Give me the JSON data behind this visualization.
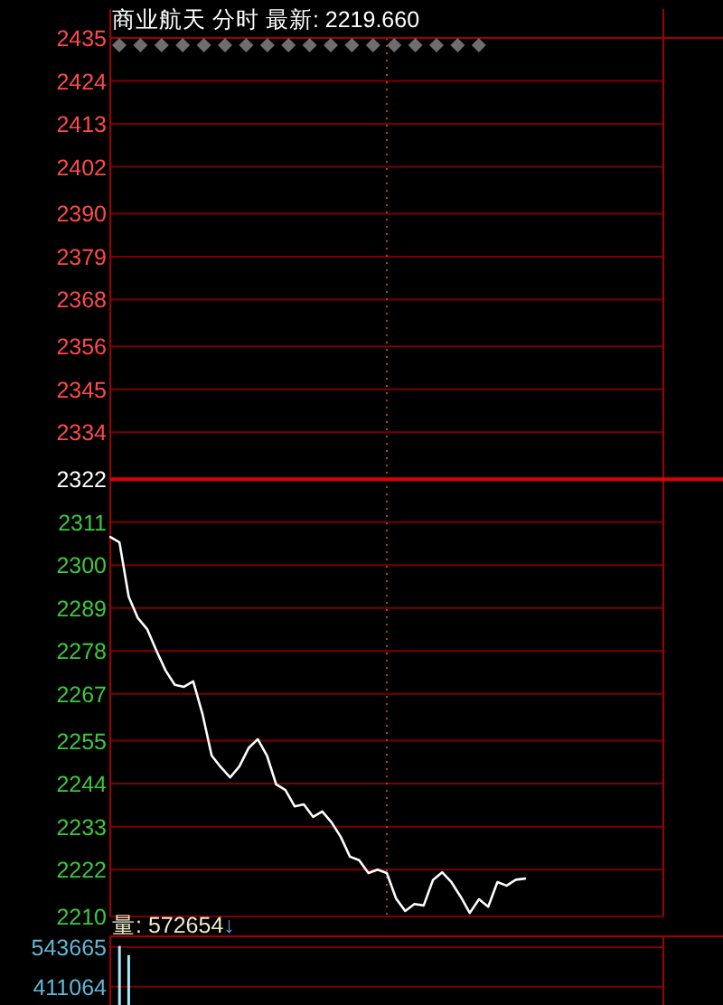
{
  "chart_data": [
    {
      "type": "line",
      "title": "商业航天 分时 最新: 2219.660",
      "categories": [
        null,
        null,
        null,
        null,
        null,
        null,
        null,
        null,
        null,
        null,
        null,
        null,
        null,
        null,
        null,
        null,
        null,
        null,
        null,
        null,
        null,
        null,
        null,
        null,
        null,
        null,
        null,
        null,
        null,
        null,
        null,
        null,
        null,
        null,
        null,
        null,
        null,
        null,
        null,
        null,
        null,
        null,
        null,
        null,
        null,
        null,
        null,
        null,
        null,
        null,
        null,
        null,
        null,
        null,
        null,
        null,
        null,
        null,
        null,
        null,
        null
      ],
      "series": [
        {
          "color": "#ffffff",
          "values": [
            2307.2,
            2305.8,
            2291.9,
            2286.4,
            2283.6,
            2278.1,
            2273.0,
            2269.3,
            2268.8,
            2270.2,
            2261.9,
            2251.2,
            2248.2,
            2245.6,
            2248.4,
            2253.1,
            2255.4,
            2251.2,
            2243.8,
            2242.4,
            2238.2,
            2238.7,
            2235.5,
            2236.9,
            2234.1,
            2230.4,
            2225.3,
            2224.4,
            2221.1,
            2222.0,
            2221.1,
            2214.6,
            2211.4,
            2213.2,
            2212.8,
            2219.3,
            2221.3,
            2218.8,
            2215.1,
            2210.9,
            2214.4,
            2212.5,
            2218.8,
            2217.9,
            2219.4,
            2219.7,
            null,
            null,
            null,
            null,
            null,
            null,
            null,
            null,
            null,
            null,
            null,
            null,
            null,
            null,
            null
          ]
        }
      ],
      "ylim": [
        2210,
        2435
      ],
      "yticks": [
        2435,
        2424,
        2413,
        2402,
        2390,
        2379,
        2368,
        2356,
        2345,
        2334,
        2322,
        2311,
        2300,
        2289,
        2278,
        2267,
        2255,
        2244,
        2233,
        2222,
        2210
      ],
      "grid": "y",
      "tick_labels": "y",
      "line_style": "solid",
      "ref_lines": [
        {
          "axis": "y",
          "value": 2322,
          "color": "#e00000",
          "line_style": "solid"
        }
      ]
    },
    {
      "type": "bar",
      "title": "量: 572654↓",
      "categories": [
        null,
        null,
        null,
        null,
        null,
        null,
        null,
        null,
        null,
        null,
        null,
        null,
        null,
        null,
        null,
        null,
        null,
        null,
        null,
        null,
        null,
        null,
        null,
        null,
        null,
        null,
        null,
        null,
        null,
        null,
        null,
        null,
        null,
        null,
        null,
        null,
        null,
        null,
        null,
        null,
        null,
        null,
        null,
        null,
        null,
        null,
        null,
        null,
        null,
        null,
        null,
        null,
        null,
        null,
        null,
        null,
        null,
        null,
        null,
        null,
        null
      ],
      "series": [
        {
          "color": "#a8e8f8",
          "values": [
            null,
            548000,
            517000,
            null,
            null,
            null,
            null,
            null,
            null,
            null,
            null,
            null,
            null,
            null,
            null,
            null,
            null,
            null,
            null,
            null,
            null,
            null,
            null,
            null,
            null,
            null,
            null,
            null,
            null,
            null,
            null,
            null,
            null,
            null,
            null,
            null,
            null,
            null,
            null,
            null,
            null,
            null,
            null,
            null,
            null,
            null,
            null,
            null,
            null,
            null,
            null,
            null,
            null,
            null,
            null,
            null,
            null,
            null,
            null,
            null,
            null
          ]
        }
      ],
      "ylim": [
        350000,
        580000
      ],
      "yticks": [
        543665,
        411064
      ],
      "grid": "y",
      "tick_labels": "y"
    }
  ]
}
